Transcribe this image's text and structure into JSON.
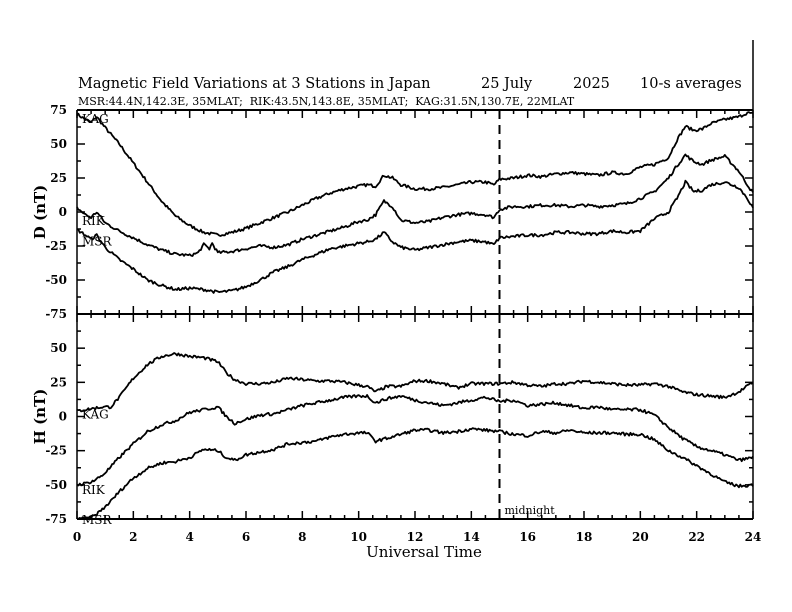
{
  "chart_data": {
    "type": "line",
    "title": "Magnetic Field Variations at 3 Stations in Japan",
    "date_label": "25 July",
    "year_label": "2025",
    "averaging_label": "10-s averages",
    "subtitle": "MSR:44.4N,142.3E, 35MLAT;  RIK:43.5N,143.8E, 35MLAT;  KAG:31.5N,130.7E, 22MLAT",
    "xlabel": "Universal Time",
    "xlim": [
      0,
      24
    ],
    "xticks": [
      "0",
      "2",
      "4",
      "6",
      "8",
      "10",
      "12",
      "14",
      "16",
      "18",
      "20",
      "22",
      "24"
    ],
    "annotation": {
      "text": "midnight",
      "x": 15
    },
    "panels": [
      {
        "ylabel": "D (nT)",
        "ylim": [
          -75,
          75
        ],
        "yticks": [
          "75",
          "50",
          "25",
          "0",
          "-25",
          "-50",
          "-75"
        ],
        "series": [
          {
            "name": "KAG",
            "label_y": 72,
            "x": [
              0,
              0.3,
              0.5,
              0.7,
              1,
              1.5,
              2,
              2.5,
              3,
              3.5,
              4,
              4.5,
              5,
              5.5,
              6,
              6.5,
              7,
              7.5,
              8,
              8.5,
              9,
              9.5,
              10,
              10.3,
              10.6,
              10.9,
              11.2,
              11.5,
              12,
              12.5,
              13,
              13.5,
              14,
              14.5,
              14.8,
              15,
              15.5,
              16,
              16.5,
              17,
              17.5,
              18,
              18.5,
              19,
              19.5,
              20,
              20.5,
              21,
              21.3,
              21.6,
              21.9,
              22.2,
              22.5,
              23,
              23.5,
              23.8,
              24
            ],
            "y": [
              72,
              68,
              66,
              70,
              62,
              50,
              36,
              22,
              8,
              -3,
              -10,
              -15,
              -17,
              -15,
              -12,
              -8,
              -4,
              0,
              5,
              10,
              14,
              17,
              19,
              20,
              19,
              27,
              25,
              20,
              17,
              17,
              18,
              20,
              22,
              22,
              20,
              24,
              25,
              27,
              26,
              28,
              29,
              28,
              27,
              29,
              28,
              33,
              35,
              40,
              53,
              63,
              60,
              61,
              65,
              68,
              70,
              73,
              72
            ]
          },
          {
            "name": "RIK",
            "label_y": -3,
            "x": [
              0,
              0.3,
              0.5,
              0.7,
              1,
              1.5,
              2,
              2.5,
              3,
              3.5,
              4,
              4.3,
              4.5,
              4.7,
              4.8,
              5,
              5.5,
              6,
              6.5,
              7,
              7.5,
              8,
              8.5,
              9,
              9.5,
              10,
              10.3,
              10.6,
              10.9,
              11.2,
              11.5,
              12,
              12.5,
              13,
              13.5,
              14,
              14.5,
              14.8,
              15,
              15.5,
              16,
              16.5,
              17,
              17.5,
              18,
              18.5,
              19,
              19.5,
              20,
              20.5,
              21,
              21.3,
              21.6,
              21.9,
              22.2,
              22.5,
              23,
              23.5,
              23.8,
              24
            ],
            "y": [
              3,
              -2,
              -4,
              0,
              -8,
              -14,
              -19,
              -24,
              -28,
              -31,
              -32,
              -30,
              -24,
              -27,
              -23,
              -30,
              -29,
              -27,
              -25,
              -26,
              -24,
              -20,
              -17,
              -14,
              -11,
              -7,
              -6,
              -2,
              8,
              4,
              -6,
              -8,
              -7,
              -4,
              -2,
              -1,
              -2,
              -4,
              2,
              4,
              4,
              5,
              5,
              4,
              5,
              4,
              5,
              6,
              10,
              15,
              25,
              34,
              42,
              37,
              35,
              38,
              41,
              30,
              20,
              14
            ]
          },
          {
            "name": "MSR",
            "label_y": -18,
            "x": [
              0,
              0.3,
              0.5,
              0.7,
              1,
              1.5,
              2,
              2.5,
              3,
              3.5,
              4,
              4.5,
              5,
              5.5,
              6,
              6.5,
              7,
              7.5,
              8,
              8.5,
              9,
              9.5,
              10,
              10.3,
              10.6,
              10.9,
              11.2,
              11.5,
              12,
              12.5,
              13,
              13.5,
              14,
              14.5,
              14.8,
              15,
              15.5,
              16,
              16.5,
              17,
              17.5,
              18,
              18.5,
              19,
              19.5,
              20,
              20.5,
              21,
              21.3,
              21.6,
              21.9,
              22.2,
              22.5,
              23,
              23.5,
              23.8,
              24
            ],
            "y": [
              -13,
              -17,
              -20,
              -17,
              -26,
              -35,
              -42,
              -50,
              -54,
              -57,
              -56,
              -57,
              -59,
              -58,
              -55,
              -50,
              -44,
              -40,
              -35,
              -31,
              -27,
              -25,
              -23,
              -22,
              -20,
              -15,
              -22,
              -26,
              -28,
              -26,
              -24,
              -22,
              -21,
              -22,
              -24,
              -19,
              -18,
              -17,
              -17,
              -15,
              -15,
              -16,
              -16,
              -14,
              -15,
              -14,
              -5,
              0,
              10,
              22,
              15,
              16,
              20,
              22,
              18,
              10,
              3
            ]
          }
        ]
      },
      {
        "ylabel": "H (nT)",
        "ylim": [
          -75,
          75
        ],
        "yticks": [
          "50",
          "25",
          "0",
          "-25",
          "-50",
          "-75"
        ],
        "series": [
          {
            "name": "KAG",
            "label_y": 5,
            "x": [
              0,
              0.3,
              0.6,
              0.9,
              1.2,
              1.5,
              2,
              2.5,
              3,
              3.5,
              4,
              4.5,
              5,
              5.3,
              5.6,
              6,
              6.5,
              7,
              7.5,
              8,
              8.5,
              9,
              9.5,
              10,
              10.3,
              10.6,
              11,
              11.5,
              12,
              12.5,
              13,
              13.5,
              14,
              14.5,
              15,
              15.5,
              16,
              16.5,
              17,
              17.5,
              18,
              18.5,
              19,
              19.5,
              20,
              20.5,
              21,
              21.5,
              22,
              22.5,
              23,
              23.5,
              24
            ],
            "y": [
              4,
              5,
              6,
              7,
              7,
              14,
              28,
              38,
              44,
              46,
              44,
              43,
              40,
              32,
              27,
              24,
              24,
              25,
              28,
              27,
              26,
              26,
              25,
              23,
              22,
              18,
              22,
              22,
              26,
              26,
              24,
              21,
              24,
              24,
              24,
              25,
              23,
              22,
              24,
              24,
              26,
              25,
              24,
              23,
              23,
              24,
              22,
              18,
              16,
              15,
              14,
              18,
              25
            ]
          },
          {
            "name": "RIK",
            "label_y": -50,
            "x": [
              0,
              0.3,
              0.6,
              0.9,
              1.2,
              1.5,
              2,
              2.5,
              3,
              3.5,
              4,
              4.5,
              5,
              5.3,
              5.6,
              6,
              6.5,
              7,
              7.5,
              8,
              8.5,
              9,
              9.5,
              10,
              10.3,
              10.6,
              11,
              11.5,
              12,
              12.5,
              13,
              13.5,
              14,
              14.5,
              15,
              15.5,
              16,
              16.5,
              17,
              17.5,
              18,
              18.5,
              19,
              19.5,
              20,
              20.5,
              21,
              21.5,
              22,
              22.5,
              23,
              23.5,
              24
            ],
            "y": [
              -50,
              -49,
              -47,
              -43,
              -37,
              -30,
              -20,
              -11,
              -6,
              -3,
              3,
              5,
              7,
              0,
              -5,
              -2,
              1,
              2,
              5,
              8,
              10,
              12,
              14,
              15,
              15,
              10,
              13,
              15,
              12,
              10,
              8,
              10,
              12,
              14,
              11,
              12,
              8,
              9,
              10,
              8,
              6,
              7,
              5,
              5,
              5,
              1,
              -8,
              -16,
              -22,
              -25,
              -28,
              -32,
              -30
            ]
          },
          {
            "name": "MSR",
            "label_y": -70,
            "x": [
              0,
              0.3,
              0.6,
              0.9,
              1.2,
              1.5,
              2,
              2.5,
              3,
              3.5,
              4,
              4.5,
              5,
              5.3,
              5.6,
              6,
              6.5,
              7,
              7.5,
              8,
              8.5,
              9,
              9.5,
              10,
              10.3,
              10.6,
              11,
              11.5,
              12,
              12.5,
              13,
              13.5,
              14,
              14.5,
              15,
              15.5,
              16,
              16.5,
              17,
              17.5,
              18,
              18.5,
              19,
              19.5,
              20,
              20.5,
              21,
              21.5,
              22,
              22.5,
              23,
              23.5,
              24
            ],
            "y": [
              -74,
              -75,
              -73,
              -68,
              -62,
              -55,
              -45,
              -38,
              -34,
              -33,
              -30,
              -24,
              -25,
              -30,
              -32,
              -28,
              -26,
              -24,
              -20,
              -19,
              -18,
              -15,
              -13,
              -12,
              -12,
              -18,
              -16,
              -13,
              -10,
              -10,
              -12,
              -11,
              -9,
              -10,
              -11,
              -13,
              -14,
              -11,
              -12,
              -10,
              -12,
              -12,
              -12,
              -13,
              -13,
              -17,
              -25,
              -30,
              -36,
              -42,
              -48,
              -51,
              -50
            ]
          }
        ]
      }
    ]
  }
}
